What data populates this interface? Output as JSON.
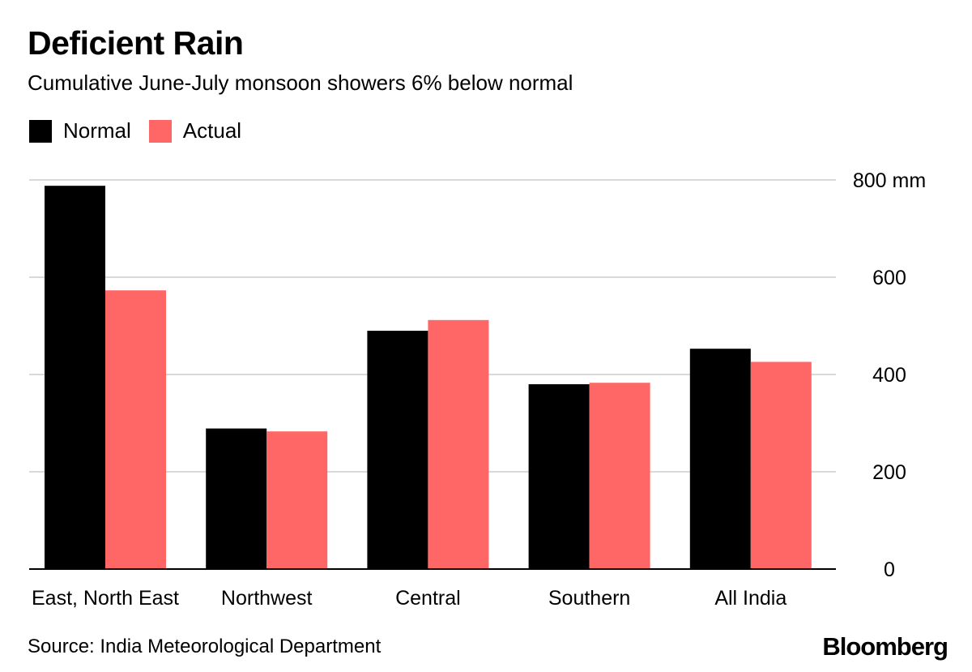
{
  "title": "Deficient Rain",
  "subtitle": "Cumulative June-July monsoon showers 6% below normal",
  "source": "Source: India Meteorological Department",
  "logo_text": "Bloomberg",
  "colors": {
    "normal": "#000000",
    "actual": "#ff6666",
    "grid": "#d9d9d9"
  },
  "legend": [
    {
      "name": "Normal",
      "color": "#000000"
    },
    {
      "name": "Actual",
      "color": "#ff6666"
    }
  ],
  "chart_data": {
    "type": "bar",
    "title": "Deficient Rain",
    "subtitle": "Cumulative June-July monsoon showers 6% below normal",
    "categories": [
      "East, North East",
      "Northwest",
      "Central",
      "Southern",
      "All India"
    ],
    "series": [
      {
        "name": "Normal",
        "values": [
          788,
          289,
          490,
          380,
          453
        ]
      },
      {
        "name": "Actual",
        "values": [
          573,
          283,
          512,
          383,
          426
        ]
      }
    ],
    "ylim": [
      0,
      800
    ],
    "yticks": [
      0,
      200,
      400,
      600,
      800
    ],
    "ytick_labels": [
      "0",
      "200",
      "400",
      "600",
      "800 mm"
    ],
    "xlabel": "",
    "ylabel": "",
    "grid": true,
    "legend_position": "top-left"
  }
}
